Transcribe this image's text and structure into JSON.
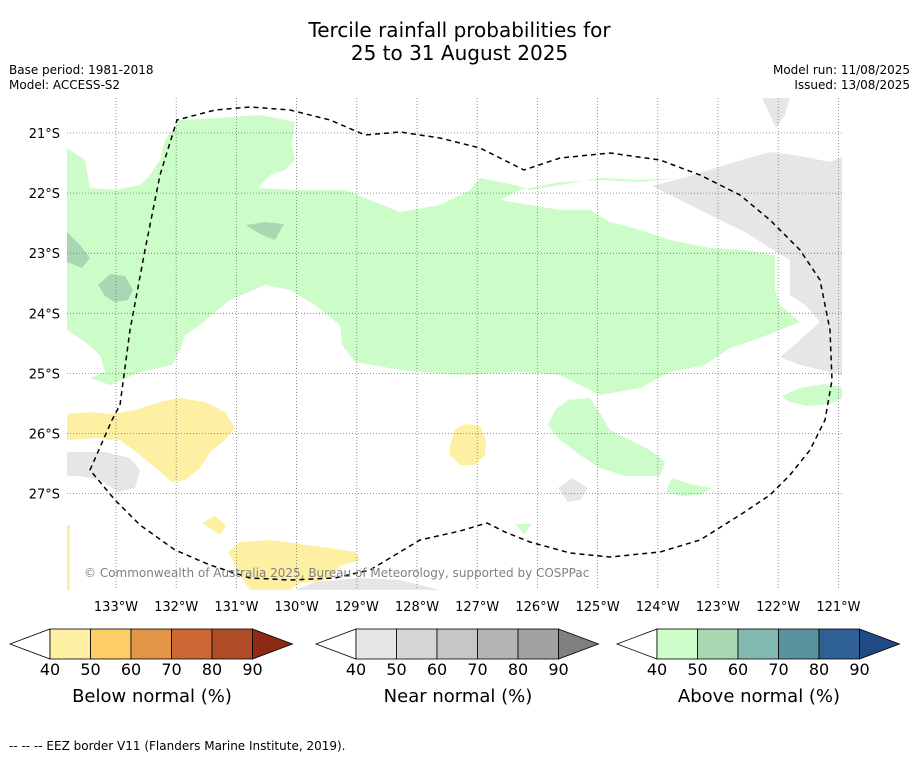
{
  "header": {
    "title_line1": "Tercile rainfall probabilities for",
    "title_line2": "25 to 31 August 2025",
    "base_period": "Base period: 1981-2018",
    "model": "Model: ACCESS-S2",
    "model_run": "Model run: 11/08/2025",
    "issued": "Issued: 13/08/2025"
  },
  "map": {
    "copyright": "© Commonwealth of Australia 2025, Bureau of Meteorology, supported by COSPPac",
    "lon_labels": [
      "133°W",
      "132°W",
      "131°W",
      "130°W",
      "129°W",
      "128°W",
      "127°W",
      "126°W",
      "125°W",
      "124°W",
      "123°W",
      "122°W",
      "121°W"
    ],
    "lat_labels": [
      "21°S",
      "22°S",
      "23°S",
      "24°S",
      "25°S",
      "26°S",
      "27°S"
    ]
  },
  "colors": {
    "below": [
      "#fef0a3",
      "#fdcd68",
      "#e29545",
      "#cd6733",
      "#b04b28",
      "#8c2a16"
    ],
    "near": [
      "#e6e6e6",
      "#d6d6d6",
      "#c6c6c6",
      "#b4b4b4",
      "#a2a2a2",
      "#7f7f7f"
    ],
    "above": [
      "#ccfcc8",
      "#a7d8b3",
      "#82b9b0",
      "#5b92a0",
      "#2f6093",
      "#1f4a85"
    ]
  },
  "colorbars": {
    "ticks": [
      "40",
      "50",
      "60",
      "70",
      "80",
      "90"
    ],
    "below_label": "Below normal (%)",
    "near_label": "Near normal (%)",
    "above_label": "Above normal (%)"
  },
  "footer": {
    "eez_note": "--  --  -- EEZ border V11 (Flanders Marine Institute, 2019)."
  }
}
